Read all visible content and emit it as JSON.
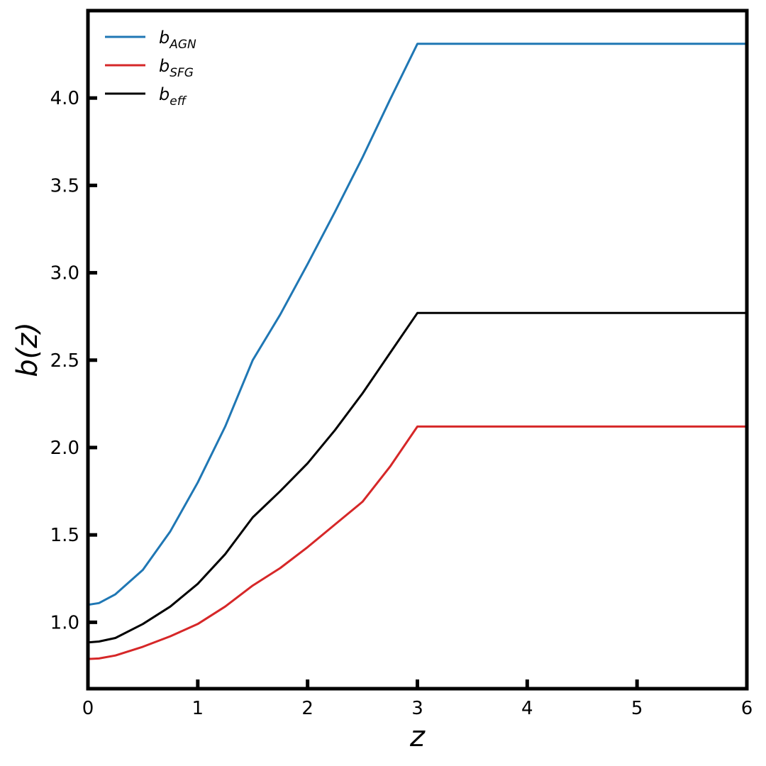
{
  "chart_data": {
    "type": "line",
    "title": "",
    "xlabel": "z",
    "ylabel": "b(z)",
    "xlim": [
      0,
      6
    ],
    "ylim": [
      0.62,
      4.5
    ],
    "xticks": [
      0,
      1,
      2,
      3,
      4,
      5,
      6
    ],
    "xtick_labels": [
      "0",
      "1",
      "2",
      "3",
      "4",
      "5",
      "6"
    ],
    "yticks": [
      1.0,
      1.5,
      2.0,
      2.5,
      3.0,
      3.5,
      4.0
    ],
    "ytick_labels": [
      "1.0",
      "1.5",
      "2.0",
      "2.5",
      "3.0",
      "3.5",
      "4.0"
    ],
    "grid": false,
    "legend_position": "top-left",
    "series": [
      {
        "name": "b_AGN",
        "name_main": "b",
        "name_sub": "AGN",
        "color": "#1f77b4",
        "x": [
          0,
          0.1,
          0.25,
          0.5,
          0.75,
          1.0,
          1.25,
          1.5,
          1.75,
          2.0,
          2.25,
          2.5,
          2.75,
          3.0,
          4.0,
          5.0,
          6.0
        ],
        "y": [
          1.1,
          1.11,
          1.16,
          1.3,
          1.52,
          1.8,
          2.12,
          2.5,
          2.76,
          3.05,
          3.35,
          3.66,
          3.99,
          4.31,
          4.31,
          4.31,
          4.31
        ]
      },
      {
        "name": "b_SFG",
        "name_main": "b",
        "name_sub": "SFG",
        "color": "#d62728",
        "x": [
          0,
          0.1,
          0.25,
          0.5,
          0.75,
          1.0,
          1.25,
          1.5,
          1.75,
          2.0,
          2.25,
          2.5,
          2.75,
          3.0,
          4.0,
          5.0,
          6.0
        ],
        "y": [
          0.79,
          0.793,
          0.81,
          0.86,
          0.92,
          0.99,
          1.09,
          1.21,
          1.31,
          1.43,
          1.56,
          1.69,
          1.89,
          2.12,
          2.12,
          2.12,
          2.12
        ]
      },
      {
        "name": "b_eff",
        "name_main": "b",
        "name_sub": "eff",
        "color": "#000000",
        "x": [
          0,
          0.1,
          0.25,
          0.5,
          0.75,
          1.0,
          1.25,
          1.5,
          1.75,
          2.0,
          2.25,
          2.5,
          2.75,
          3.0,
          4.0,
          5.0,
          6.0
        ],
        "y": [
          0.885,
          0.89,
          0.91,
          0.99,
          1.09,
          1.22,
          1.39,
          1.6,
          1.75,
          1.91,
          2.1,
          2.31,
          2.54,
          2.77,
          2.77,
          2.77,
          2.77
        ]
      }
    ]
  }
}
